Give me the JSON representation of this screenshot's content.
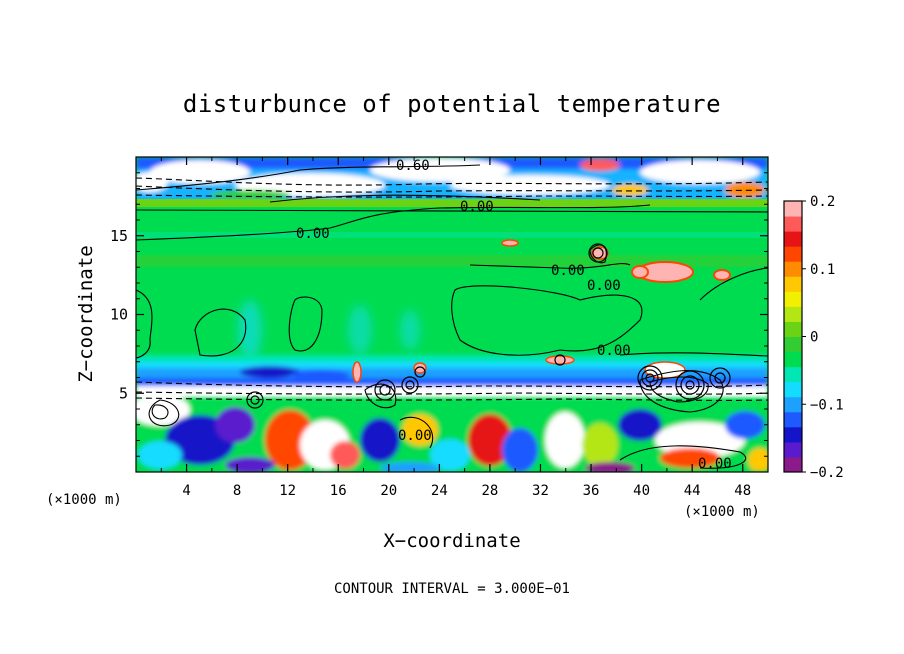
{
  "chart_data": {
    "type": "heatmap",
    "title": "disturbunce of potential temperature",
    "xlabel": "X−coordinate",
    "ylabel": "Z−coordinate",
    "x_unit_left": "(×1000 m)",
    "x_unit_right": "(×1000 m)",
    "xlim": [
      0,
      50
    ],
    "ylim": [
      0,
      20
    ],
    "x_ticks": [
      "4",
      "8",
      "12",
      "16",
      "20",
      "24",
      "28",
      "32",
      "36",
      "40",
      "44",
      "48"
    ],
    "y_ticks": [
      "5",
      "10",
      "15"
    ],
    "colorbar": {
      "range": [
        -0.2,
        0.2
      ],
      "tick_labels": [
        "0.2",
        "0.1",
        "0",
        "−0.1",
        "−0.2"
      ],
      "colors": [
        "#8b1a8b",
        "#5a1acd",
        "#1414c8",
        "#1e5aff",
        "#1ea0ff",
        "#14dcff",
        "#00e6b4",
        "#00dc50",
        "#32cd32",
        "#6ad414",
        "#b4e614",
        "#f0f000",
        "#ffc800",
        "#ff8c00",
        "#ff4600",
        "#e61414",
        "#ff5a5a",
        "#ffb4b4"
      ]
    },
    "contour_labels": [
      "0.60",
      "0.00",
      "0.00",
      "0.00",
      "0.00",
      "0.00",
      "0.00",
      "0.00"
    ],
    "contour_interval_text": "CONTOUR INTERVAL = 3.000E−01",
    "grid": false,
    "legend": "right"
  }
}
